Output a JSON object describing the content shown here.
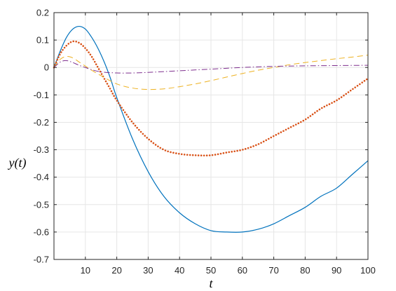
{
  "chart_data": {
    "type": "line",
    "title": "",
    "xlabel": "t",
    "ylabel": "y(t)",
    "xlim": [
      0,
      100
    ],
    "ylim": [
      -0.7,
      0.2
    ],
    "grid": true,
    "xticks": [
      10,
      20,
      30,
      40,
      50,
      60,
      70,
      80,
      90,
      100
    ],
    "xtick_labels": [
      "10",
      "20",
      "30",
      "40",
      "50",
      "60",
      "70",
      "80",
      "90",
      "100"
    ],
    "yticks": [
      0.2,
      0.1,
      0,
      -0.1,
      -0.2,
      -0.3,
      -0.4,
      -0.5,
      -0.6,
      -0.7
    ],
    "ytick_labels": [
      "0.2",
      "0.1",
      "0",
      "-0.1",
      "-0.2",
      "-0.3",
      "-0.4",
      "-0.5",
      "-0.6",
      "-0.7"
    ],
    "series": [
      {
        "style": "solid",
        "color": "#0072BD",
        "x": [
          0,
          2,
          4,
          6,
          8,
          10,
          12,
          14,
          16,
          18,
          20,
          25,
          30,
          35,
          40,
          45,
          50,
          55,
          60,
          65,
          70,
          75,
          80,
          85,
          90,
          95,
          100
        ],
        "y": [
          0,
          0.06,
          0.11,
          0.14,
          0.15,
          0.14,
          0.11,
          0.07,
          0.02,
          -0.04,
          -0.11,
          -0.26,
          -0.38,
          -0.47,
          -0.53,
          -0.57,
          -0.595,
          -0.6,
          -0.6,
          -0.59,
          -0.57,
          -0.54,
          -0.51,
          -0.47,
          -0.44,
          -0.39,
          -0.34
        ]
      },
      {
        "style": "dotted",
        "color": "#D95319",
        "x": [
          0,
          2,
          4,
          6,
          8,
          10,
          12,
          14,
          16,
          18,
          20,
          25,
          30,
          35,
          40,
          45,
          50,
          55,
          60,
          65,
          70,
          75,
          80,
          85,
          90,
          95,
          100
        ],
        "y": [
          0,
          0.05,
          0.08,
          0.095,
          0.09,
          0.07,
          0.04,
          0.0,
          -0.04,
          -0.08,
          -0.12,
          -0.2,
          -0.26,
          -0.3,
          -0.315,
          -0.32,
          -0.32,
          -0.31,
          -0.3,
          -0.28,
          -0.25,
          -0.22,
          -0.19,
          -0.15,
          -0.12,
          -0.08,
          -0.04
        ]
      },
      {
        "style": "dashed",
        "color": "#EDB120",
        "x": [
          0,
          2,
          4,
          6,
          8,
          10,
          12,
          15,
          20,
          25,
          30,
          35,
          40,
          45,
          50,
          55,
          60,
          65,
          70,
          75,
          80,
          85,
          90,
          95,
          100
        ],
        "y": [
          0,
          0.03,
          0.04,
          0.035,
          0.02,
          0.005,
          -0.01,
          -0.03,
          -0.06,
          -0.075,
          -0.08,
          -0.078,
          -0.07,
          -0.06,
          -0.048,
          -0.035,
          -0.022,
          -0.01,
          0.0,
          0.01,
          0.018,
          0.025,
          0.032,
          0.038,
          0.045
        ]
      },
      {
        "style": "dashdot",
        "color": "#7E2F8E",
        "x": [
          0,
          2,
          4,
          6,
          8,
          10,
          12,
          15,
          20,
          25,
          30,
          40,
          50,
          60,
          70,
          80,
          90,
          100
        ],
        "y": [
          0,
          0.02,
          0.025,
          0.018,
          0.008,
          0.0,
          -0.008,
          -0.016,
          -0.02,
          -0.02,
          -0.018,
          -0.012,
          -0.006,
          0.0,
          0.004,
          0.006,
          0.007,
          0.008
        ]
      }
    ]
  }
}
